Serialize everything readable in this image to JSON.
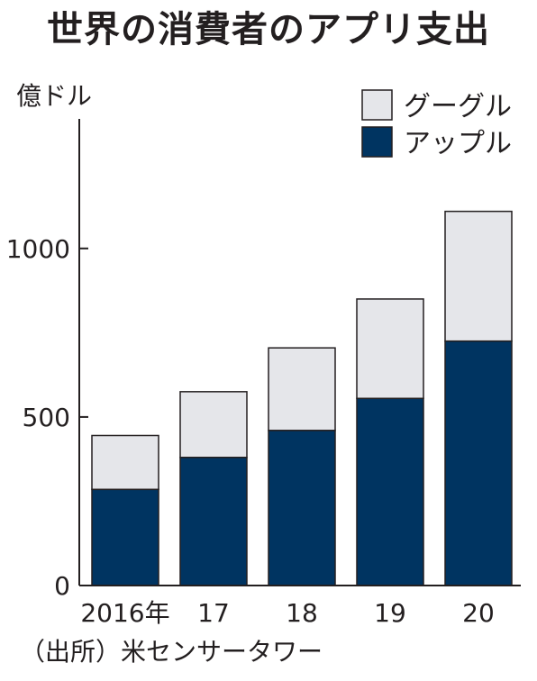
{
  "title": "世界の消費者のアプリ支出",
  "source": "（出所）米センサータワー",
  "colors": {
    "google": "#e5e6ea",
    "apple": "#003461",
    "outline": "#231f20"
  },
  "chart_data": {
    "type": "bar",
    "stacked": true,
    "title": "世界の消費者のアプリ支出",
    "ylabel": "億ドル",
    "xlabel": "",
    "categories": [
      "2016年",
      "17",
      "18",
      "19",
      "20"
    ],
    "series": [
      {
        "name": "アップル",
        "values": [
          285,
          380,
          460,
          555,
          725
        ]
      },
      {
        "name": "グーグル",
        "values": [
          160,
          195,
          245,
          295,
          385
        ]
      }
    ],
    "ylim": [
      0,
      1400
    ],
    "yticks": [
      0,
      500,
      1000
    ],
    "grid": false,
    "legend": "top-right"
  }
}
